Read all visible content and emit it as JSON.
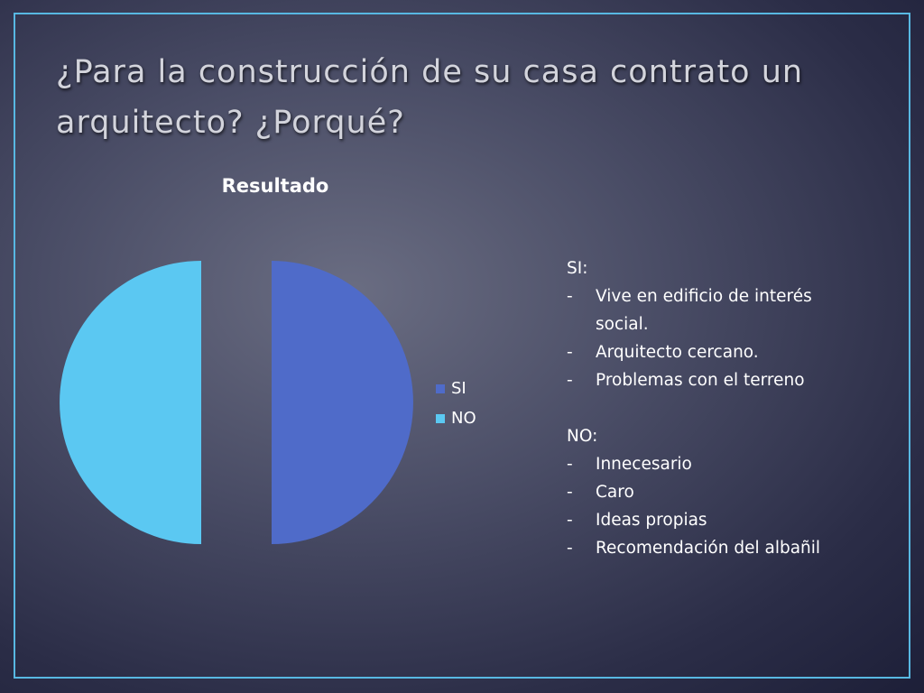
{
  "slide": {
    "title": "¿Para la construcción de su casa contrato un arquitecto? ¿Porqué?"
  },
  "chart_data": {
    "type": "pie",
    "title": "Resultado",
    "categories": [
      "SI",
      "NO"
    ],
    "values": [
      50,
      50
    ],
    "colors": [
      "#4f6bc9",
      "#5bc8f2"
    ],
    "legend_position": "right"
  },
  "notes": {
    "groups": [
      {
        "heading": "SI:",
        "items": [
          "Vive en edificio de interés social.",
          "Arquitecto cercano.",
          "Problemas con el terreno"
        ]
      },
      {
        "heading": "NO:",
        "items": [
          "Innecesario",
          "Caro",
          "Ideas propias",
          "Recomendación del albañil"
        ]
      }
    ],
    "bullet": "-"
  }
}
